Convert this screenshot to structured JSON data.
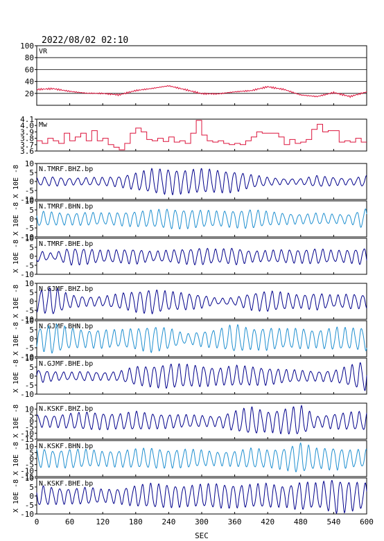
{
  "header": "2022/08/02 02:10",
  "colors": {
    "vr": "#dc143c",
    "mw": "#dc143c",
    "dark_trace": "#00008b",
    "light_trace": "#1e8fd0"
  },
  "chart_data": {
    "type": "line",
    "xlabel": "SEC",
    "xlim": [
      0,
      600
    ],
    "xticks": [
      "0",
      "60",
      "120",
      "180",
      "240",
      "300",
      "360",
      "420",
      "480",
      "540",
      "600"
    ],
    "panels": [
      {
        "label": "VR",
        "ylim": [
          0,
          100
        ],
        "yticks": [
          "100",
          "80",
          "60",
          "40",
          "20"
        ],
        "ylabel": "",
        "grid": true,
        "x": [
          0,
          30,
          60,
          90,
          120,
          150,
          180,
          210,
          240,
          270,
          300,
          330,
          360,
          390,
          420,
          450,
          480,
          510,
          540,
          570,
          600
        ],
        "y": [
          26,
          28,
          24,
          21,
          20,
          17,
          24,
          28,
          33,
          27,
          20,
          19,
          22,
          24,
          31,
          27,
          18,
          15,
          21,
          14,
          22
        ]
      },
      {
        "label": "Mw",
        "ylim": [
          3.6,
          4.1
        ],
        "yticks": [
          "4.1",
          "4.0",
          "3.9",
          "3.8",
          "3.7",
          "3.6"
        ],
        "ylabel": "",
        "grid": false,
        "x": [
          0,
          10,
          20,
          30,
          40,
          50,
          60,
          70,
          80,
          90,
          100,
          110,
          120,
          130,
          140,
          150,
          160,
          170,
          180,
          190,
          200,
          210,
          220,
          230,
          240,
          250,
          260,
          270,
          280,
          290,
          300,
          310,
          320,
          330,
          340,
          350,
          360,
          370,
          380,
          390,
          400,
          410,
          420,
          430,
          440,
          450,
          460,
          470,
          480,
          490,
          500,
          510,
          520,
          530,
          540,
          550,
          560,
          570,
          580,
          590,
          600
        ],
        "y": [
          3.76,
          3.72,
          3.8,
          3.76,
          3.72,
          3.88,
          3.76,
          3.82,
          3.88,
          3.76,
          3.92,
          3.76,
          3.8,
          3.7,
          3.66,
          3.62,
          3.72,
          3.88,
          3.96,
          3.9,
          3.78,
          3.76,
          3.8,
          3.75,
          3.82,
          3.74,
          3.76,
          3.72,
          3.88,
          4.08,
          3.85,
          3.76,
          3.74,
          3.76,
          3.72,
          3.7,
          3.72,
          3.7,
          3.76,
          3.82,
          3.9,
          3.88,
          3.88,
          3.88,
          3.82,
          3.7,
          3.78,
          3.72,
          3.74,
          3.78,
          3.94,
          4.02,
          3.9,
          3.92,
          3.92,
          3.74,
          3.76,
          3.74,
          3.8,
          3.74,
          3.74
        ]
      },
      {
        "label": "N.TMRF.BHZ.bp",
        "ylim": [
          -10,
          10
        ],
        "yticks": [
          "10",
          "5",
          "0",
          "-5",
          "-10"
        ],
        "ylabel": "X 10E -8",
        "color": "dark",
        "x": [
          0,
          30,
          60,
          90,
          120,
          150,
          180,
          210,
          240,
          270,
          300,
          330,
          360,
          390,
          420,
          450,
          480,
          510,
          540,
          570,
          600
        ],
        "amplitude": [
          2,
          2.5,
          1.8,
          2,
          2.2,
          2.8,
          4.5,
          6.5,
          6.8,
          6.2,
          6.5,
          6,
          5.5,
          3.5,
          2.2,
          1.5,
          1.5,
          3,
          2.2,
          1.6,
          3
        ],
        "period": 15
      },
      {
        "label": "N.TMRF.BHN.bp",
        "ylim": [
          -10,
          10
        ],
        "yticks": [
          "10",
          "5",
          "0",
          "-5",
          "-10"
        ],
        "ylabel": "X 10E -8",
        "color": "light",
        "x": [
          0,
          30,
          60,
          90,
          120,
          150,
          180,
          210,
          240,
          270,
          300,
          330,
          360,
          390,
          420,
          450,
          480,
          510,
          540,
          570,
          600
        ],
        "amplitude": [
          4,
          3.5,
          3,
          3.5,
          3,
          3.5,
          4,
          4.5,
          5.2,
          5,
          4.5,
          4,
          4.5,
          5,
          3.8,
          3,
          2.5,
          3,
          2.5,
          2.5,
          5.5
        ],
        "period": 15
      },
      {
        "label": "N.TMRF.BHE.bp",
        "ylim": [
          -10,
          10
        ],
        "yticks": [
          "10",
          "5",
          "0",
          "-5",
          "-10"
        ],
        "ylabel": "X 10E -8",
        "color": "dark",
        "x": [
          0,
          30,
          60,
          90,
          120,
          150,
          180,
          210,
          240,
          270,
          300,
          330,
          360,
          390,
          420,
          450,
          480,
          510,
          540,
          570,
          600
        ],
        "amplitude": [
          3,
          1.5,
          4.5,
          4.2,
          3,
          3.5,
          4,
          2.5,
          3.2,
          4,
          4.5,
          3.5,
          4.5,
          3,
          3,
          3.5,
          3.5,
          4,
          3,
          3.5,
          4.5
        ],
        "period": 15
      },
      {
        "label": "N.GJMF.BHZ.bp",
        "ylim": [
          -10,
          10
        ],
        "yticks": [
          "10",
          "5",
          "0",
          "-5",
          "-10"
        ],
        "ylabel": "X 10E -8",
        "color": "dark",
        "x": [
          0,
          30,
          60,
          90,
          120,
          150,
          180,
          210,
          240,
          270,
          300,
          330,
          360,
          390,
          420,
          450,
          480,
          510,
          540,
          570,
          600
        ],
        "amplitude": [
          5.5,
          7.5,
          3.5,
          2.5,
          2.5,
          4,
          5.5,
          6.5,
          5,
          4.5,
          3.5,
          1.5,
          2,
          4.5,
          5.5,
          4.5,
          3.5,
          4.5,
          3,
          4,
          3.5
        ],
        "period": 15
      },
      {
        "label": "N.GJMF.BHN.bp",
        "ylim": [
          -10,
          10
        ],
        "yticks": [
          "10",
          "5",
          "0",
          "-5",
          "-10"
        ],
        "ylabel": "X 10E -8",
        "color": "light",
        "x": [
          0,
          30,
          60,
          90,
          120,
          150,
          180,
          210,
          240,
          270,
          300,
          330,
          360,
          390,
          420,
          450,
          480,
          510,
          540,
          570,
          600
        ],
        "amplitude": [
          5.5,
          8,
          5.5,
          4.5,
          5,
          4.5,
          5.5,
          7,
          5.5,
          2.5,
          4,
          5,
          7.5,
          5.5,
          6,
          5,
          5.5,
          4.5,
          6,
          5.5,
          6
        ],
        "period": 15
      },
      {
        "label": "N.GJMF.BHE.bp",
        "ylim": [
          -10,
          10
        ],
        "yticks": [
          "10",
          "5",
          "0",
          "-5",
          "-10"
        ],
        "ylabel": "X 10E -8",
        "color": "dark",
        "x": [
          0,
          30,
          60,
          90,
          120,
          150,
          180,
          210,
          240,
          270,
          300,
          330,
          360,
          390,
          420,
          450,
          480,
          510,
          540,
          570,
          600
        ],
        "amplitude": [
          3.5,
          2.5,
          2,
          2.5,
          2,
          2.5,
          5,
          5.5,
          6.5,
          6,
          5.5,
          4.5,
          5.5,
          5,
          4.5,
          3.5,
          3,
          2.5,
          3,
          5.5,
          8
        ],
        "period": 15
      },
      {
        "label": "N.KSKF.BHZ.bp",
        "ylim": [
          -15,
          15
        ],
        "yticks": [
          "10",
          "5",
          "0",
          "-5",
          "-10",
          "-15"
        ],
        "ylabel": "X 10E -8",
        "color": "dark",
        "x": [
          0,
          30,
          60,
          90,
          120,
          150,
          180,
          210,
          240,
          270,
          300,
          330,
          360,
          390,
          420,
          450,
          480,
          510,
          540,
          570,
          600
        ],
        "amplitude": [
          5,
          4.5,
          6,
          7,
          6.5,
          6,
          7.5,
          6,
          5.5,
          5,
          4.5,
          4,
          8,
          11,
          8,
          10,
          12,
          4,
          6,
          7,
          7.5
        ],
        "period": 15
      },
      {
        "label": "N.KSKF.BHN.bp",
        "ylim": [
          -15,
          15
        ],
        "yticks": [
          "10",
          "5",
          "0",
          "-5",
          "-10",
          "-15"
        ],
        "ylabel": "X 10E -8",
        "color": "light",
        "x": [
          0,
          30,
          60,
          90,
          120,
          150,
          180,
          210,
          240,
          270,
          300,
          330,
          360,
          390,
          420,
          450,
          480,
          510,
          540,
          570,
          600
        ],
        "amplitude": [
          8,
          6.5,
          7.5,
          7,
          6,
          6.5,
          7.5,
          8,
          7,
          7.5,
          6.5,
          5.5,
          6,
          8,
          7,
          8.5,
          12,
          8,
          9,
          7,
          7
        ],
        "period": 15
      },
      {
        "label": "N.KSKF.BHE.bp",
        "ylim": [
          -10,
          10
        ],
        "yticks": [
          "10",
          "5",
          "0",
          "-5",
          "-10"
        ],
        "ylabel": "X 10E -8",
        "color": "dark",
        "x": [
          0,
          30,
          60,
          90,
          120,
          150,
          180,
          210,
          240,
          270,
          300,
          330,
          360,
          390,
          420,
          450,
          480,
          510,
          540,
          570,
          600
        ],
        "amplitude": [
          5.5,
          4.5,
          4,
          4.5,
          3.5,
          4,
          5.5,
          6.5,
          6,
          5.5,
          6,
          6.5,
          6,
          6,
          6.5,
          5.5,
          7.5,
          6.5,
          9,
          8,
          6.5
        ],
        "period": 15
      }
    ]
  }
}
